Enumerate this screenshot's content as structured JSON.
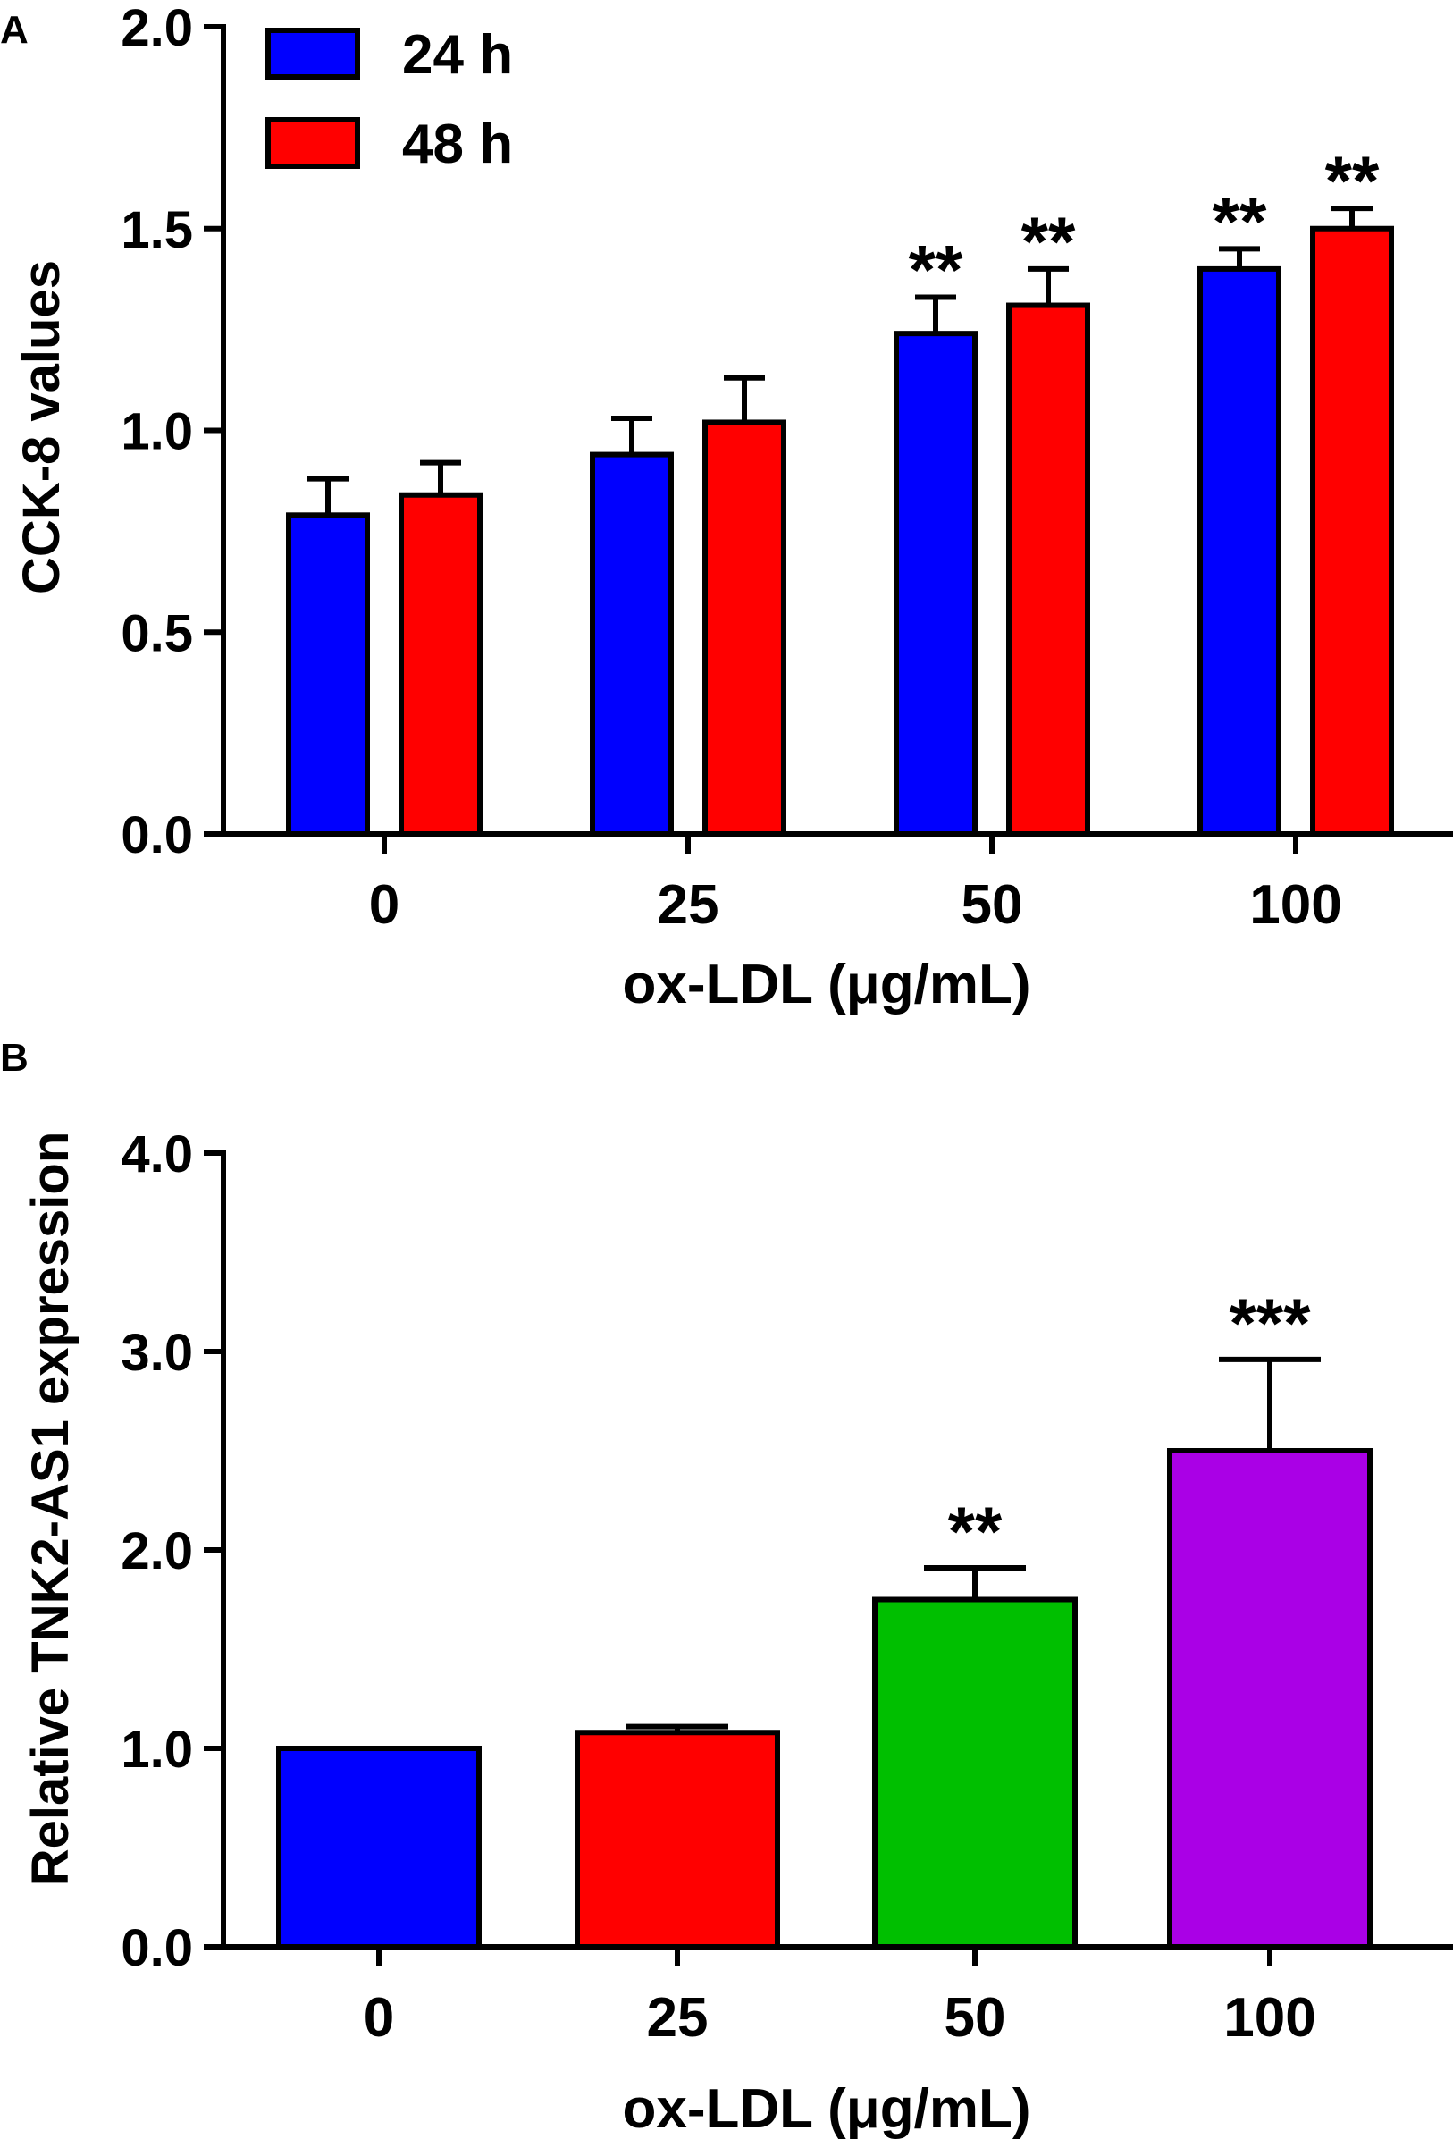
{
  "chart_data": [
    {
      "panel_label": "A",
      "type": "bar",
      "categories": [
        "0",
        "25",
        "50",
        "100"
      ],
      "series": [
        {
          "name": "24 h",
          "color": "#0000ff",
          "values": [
            0.79,
            0.94,
            1.24,
            1.4
          ],
          "errors": [
            0.09,
            0.09,
            0.09,
            0.05
          ]
        },
        {
          "name": "48 h",
          "color": "#ff0000",
          "values": [
            0.84,
            1.02,
            1.31,
            1.5
          ],
          "errors": [
            0.08,
            0.11,
            0.09,
            0.05
          ]
        }
      ],
      "significance": [
        [
          "",
          "",
          "**",
          "**"
        ],
        [
          "",
          "",
          "**",
          "**"
        ]
      ],
      "ylabel": "CCK-8 values",
      "xlabel": "ox-LDL (μg/mL)",
      "yticks": [
        "0.0",
        "0.5",
        "1.0",
        "1.5",
        "2.0"
      ],
      "ylim": [
        0,
        2.0
      ],
      "legend": "top-left",
      "grid": false
    },
    {
      "panel_label": "B",
      "type": "bar",
      "categories": [
        "0",
        "25",
        "50",
        "100"
      ],
      "series": [
        {
          "values": [
            1.0,
            1.08,
            1.75,
            2.5
          ],
          "errors": [
            0.0,
            0.03,
            0.16,
            0.46
          ],
          "colors": [
            "#0000ff",
            "#ff0000",
            "#00bf00",
            "#aa00e6"
          ]
        }
      ],
      "significance": [
        [
          "",
          "",
          "**",
          "***"
        ]
      ],
      "ylabel": "Relative TNK2-AS1 expression",
      "xlabel": "ox-LDL (μg/mL)",
      "yticks": [
        "0.0",
        "1.0",
        "2.0",
        "3.0",
        "4.0"
      ],
      "ylim": [
        0,
        4.0
      ],
      "grid": false
    }
  ]
}
